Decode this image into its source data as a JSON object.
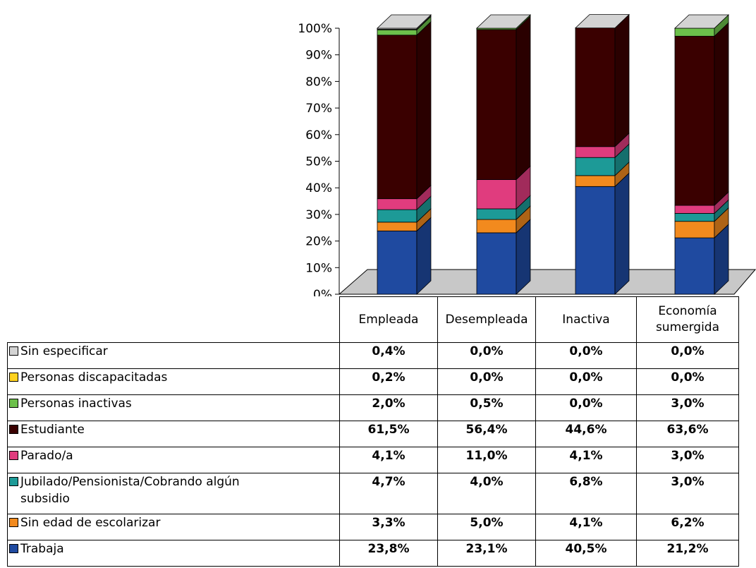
{
  "chart_data": {
    "type": "bar",
    "stacked": true,
    "three_d": true,
    "categories": [
      "Empleada",
      "Desempleada",
      "Inactiva",
      "Economía sumergida"
    ],
    "series": [
      {
        "name": "Trabaja",
        "color": "#1f4aa0",
        "values": [
          23.8,
          23.1,
          40.5,
          21.2
        ],
        "labels": [
          "23,8%",
          "23,1%",
          "40,5%",
          "21,2%"
        ]
      },
      {
        "name": "Sin edad de escolarizar",
        "color": "#f28a1e",
        "values": [
          3.3,
          5.0,
          4.1,
          6.2
        ],
        "labels": [
          "3,3%",
          "5,0%",
          "4,1%",
          "6,2%"
        ]
      },
      {
        "name": "Jubilado/Pensionista/Cobrando algún subsidio",
        "color": "#1d9a97",
        "values": [
          4.7,
          4.0,
          6.8,
          3.0
        ],
        "labels": [
          "4,7%",
          "4,0%",
          "6,8%",
          "3,0%"
        ]
      },
      {
        "name": "Parado/a",
        "color": "#e03c7e",
        "values": [
          4.1,
          11.0,
          4.1,
          3.0
        ],
        "labels": [
          "4,1%",
          "11,0%",
          "4,1%",
          "3,0%"
        ]
      },
      {
        "name": "Estudiante",
        "color": "#3a0000",
        "values": [
          61.5,
          56.4,
          44.6,
          63.6
        ],
        "labels": [
          "61,5%",
          "56,4%",
          "44,6%",
          "63,6%"
        ]
      },
      {
        "name": "Personas inactivas",
        "color": "#6cc04a",
        "values": [
          2.0,
          0.5,
          0.0,
          3.0
        ],
        "labels": [
          "2,0%",
          "0,5%",
          "0,0%",
          "3,0%"
        ]
      },
      {
        "name": "Personas discapacitadas",
        "color": "#ffd21f",
        "values": [
          0.2,
          0.0,
          0.0,
          0.0
        ],
        "labels": [
          "0,2%",
          "0,0%",
          "0,0%",
          "0,0%"
        ]
      },
      {
        "name": "Sin especificar",
        "color": "#d3d3d3",
        "values": [
          0.4,
          0.0,
          0.0,
          0.0
        ],
        "labels": [
          "0,4%",
          "0,0%",
          "0,0%",
          "0,0%"
        ]
      }
    ],
    "y_ticks": [
      "0%",
      "10%",
      "20%",
      "30%",
      "40%",
      "50%",
      "60%",
      "70%",
      "80%",
      "90%",
      "100%"
    ],
    "ylim": [
      0,
      100
    ],
    "grid": false,
    "legend": "data-table-below"
  }
}
